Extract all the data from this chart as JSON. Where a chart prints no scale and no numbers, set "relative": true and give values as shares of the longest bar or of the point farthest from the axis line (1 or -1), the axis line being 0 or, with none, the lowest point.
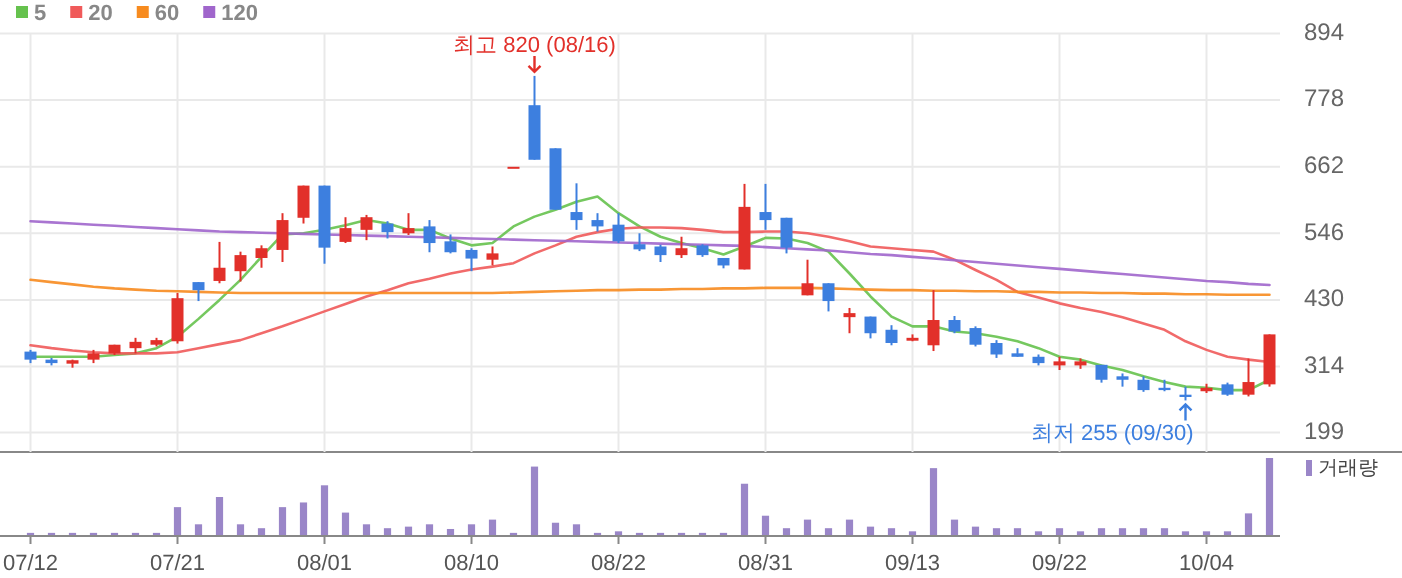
{
  "chart_data": [
    {
      "type": "candlestick",
      "categories": [
        null,
        null,
        null,
        null,
        null,
        null,
        null,
        null,
        null,
        null,
        null,
        null,
        null,
        null,
        null,
        null,
        null,
        null,
        null,
        null,
        null,
        null,
        null,
        null,
        null,
        null,
        null,
        null,
        null,
        null,
        null,
        null,
        null,
        null,
        null,
        null,
        null,
        null,
        null,
        null,
        null,
        null,
        null,
        null,
        null,
        null,
        null,
        null,
        null,
        null,
        null,
        null,
        null,
        null,
        null,
        null,
        null,
        null,
        null,
        null
      ],
      "ohlc": [
        [
          340,
          343,
          320,
          326
        ],
        [
          326,
          329,
          316,
          320
        ],
        [
          319,
          326,
          312,
          325
        ],
        [
          326,
          343,
          320,
          337
        ],
        [
          337,
          352,
          334,
          352
        ],
        [
          346,
          364,
          337,
          357
        ],
        [
          352,
          364,
          349,
          360
        ],
        [
          358,
          442,
          354,
          433
        ],
        [
          461,
          461,
          428,
          447
        ],
        [
          463,
          531,
          459,
          486
        ],
        [
          480,
          514,
          462,
          508
        ],
        [
          503,
          525,
          486,
          520
        ],
        [
          517,
          581,
          496,
          569
        ],
        [
          573,
          629,
          563,
          629
        ],
        [
          629,
          629,
          493,
          521
        ],
        [
          531,
          574,
          529,
          555
        ],
        [
          552,
          578,
          534,
          574
        ],
        [
          563,
          567,
          537,
          548
        ],
        [
          546,
          581,
          543,
          555
        ],
        [
          558,
          569,
          513,
          529
        ],
        [
          532,
          544,
          511,
          513
        ],
        [
          517,
          520,
          480,
          502
        ],
        [
          500,
          523,
          490,
          511
        ],
        [
          660,
          660,
          660,
          660
        ],
        [
          769,
          820,
          674,
          674
        ],
        [
          694,
          694,
          587,
          587
        ],
        [
          583,
          633,
          552,
          569
        ],
        [
          569,
          581,
          549,
          558
        ],
        [
          561,
          581,
          529,
          532
        ],
        [
          527,
          546,
          515,
          518
        ],
        [
          523,
          526,
          496,
          508
        ],
        [
          508,
          540,
          503,
          520
        ],
        [
          525,
          527,
          505,
          508
        ],
        [
          503,
          503,
          485,
          490
        ],
        [
          483,
          632,
          483,
          592
        ],
        [
          583,
          632,
          552,
          569
        ],
        [
          573,
          573,
          511,
          521
        ],
        [
          438,
          500,
          438,
          459
        ],
        [
          459,
          459,
          410,
          428
        ],
        [
          400,
          416,
          372,
          407
        ],
        [
          401,
          401,
          363,
          372
        ],
        [
          378,
          386,
          351,
          355
        ],
        [
          359,
          370,
          358,
          364
        ],
        [
          351,
          447,
          341,
          395
        ],
        [
          395,
          402,
          372,
          375
        ],
        [
          381,
          384,
          349,
          352
        ],
        [
          355,
          360,
          329,
          335
        ],
        [
          337,
          346,
          331,
          331
        ],
        [
          331,
          335,
          316,
          320
        ],
        [
          316,
          331,
          308,
          323
        ],
        [
          316,
          328,
          310,
          323
        ],
        [
          317,
          317,
          286,
          291
        ],
        [
          297,
          302,
          279,
          291
        ],
        [
          291,
          297,
          270,
          273
        ],
        [
          277,
          291,
          271,
          273
        ],
        [
          265,
          279,
          255,
          261
        ],
        [
          271,
          284,
          268,
          277
        ],
        [
          283,
          286,
          263,
          265
        ],
        [
          265,
          328,
          262,
          287
        ],
        [
          283,
          370,
          279,
          370
        ]
      ],
      "colors": [
        "#3d7fdf",
        "#3d7fdf",
        "#e2302a",
        "#e2302a",
        "#e2302a",
        "#e2302a",
        "#e2302a",
        "#e2302a",
        "#3d7fdf",
        "#e2302a",
        "#e2302a",
        "#e2302a",
        "#e2302a",
        "#e2302a",
        "#3d7fdf",
        "#e2302a",
        "#e2302a",
        "#3d7fdf",
        "#e2302a",
        "#3d7fdf",
        "#3d7fdf",
        "#3d7fdf",
        "#e2302a",
        "#e2302a",
        "#3d7fdf",
        "#3d7fdf",
        "#3d7fdf",
        "#3d7fdf",
        "#3d7fdf",
        "#3d7fdf",
        "#3d7fdf",
        "#e2302a",
        "#3d7fdf",
        "#3d7fdf",
        "#e2302a",
        "#3d7fdf",
        "#3d7fdf",
        "#e2302a",
        "#3d7fdf",
        "#e2302a",
        "#3d7fdf",
        "#3d7fdf",
        "#e2302a",
        "#e2302a",
        "#3d7fdf",
        "#3d7fdf",
        "#3d7fdf",
        "#3d7fdf",
        "#3d7fdf",
        "#e2302a",
        "#e2302a",
        "#3d7fdf",
        "#3d7fdf",
        "#3d7fdf",
        "#3d7fdf",
        "#3d7fdf",
        "#e2302a",
        "#3d7fdf",
        "#e2302a",
        "#e2302a"
      ],
      "series": [
        {
          "name": "5",
          "type": "line",
          "color": "#66c24e",
          "values": [
            331,
            331,
            331,
            331,
            334,
            337,
            346,
            366,
            397,
            430,
            465,
            505,
            544,
            546,
            552,
            560,
            569,
            563,
            552,
            552,
            537,
            525,
            529,
            558,
            575,
            587,
            601,
            610,
            581,
            558,
            540,
            529,
            520,
            509,
            523,
            538,
            537,
            529,
            514,
            476,
            436,
            401,
            384,
            384,
            375,
            372,
            366,
            358,
            346,
            331,
            326,
            316,
            308,
            297,
            287,
            279,
            277,
            273,
            273,
            291
          ]
        },
        {
          "name": "20",
          "type": "line",
          "color": "#f05a5a",
          "values": [
            351,
            346,
            342,
            339,
            337,
            337,
            337,
            339,
            346,
            353,
            360,
            372,
            384,
            397,
            410,
            423,
            436,
            447,
            459,
            467,
            476,
            483,
            488,
            494,
            511,
            525,
            540,
            548,
            554,
            556,
            556,
            555,
            552,
            548,
            548,
            549,
            549,
            546,
            540,
            532,
            523,
            520,
            517,
            514,
            500,
            482,
            465,
            444,
            434,
            424,
            416,
            409,
            400,
            389,
            378,
            358,
            343,
            331,
            326,
            322
          ]
        },
        {
          "name": "60",
          "type": "line",
          "color": "#f78b1f",
          "values": [
            465,
            461,
            457,
            453,
            450,
            448,
            446,
            445,
            444,
            443,
            442,
            442,
            442,
            442,
            442,
            442,
            442,
            442,
            442,
            442,
            442,
            442,
            442,
            443,
            444,
            445,
            446,
            447,
            447,
            448,
            448,
            449,
            449,
            450,
            450,
            451,
            451,
            451,
            450,
            449,
            448,
            447,
            447,
            446,
            446,
            445,
            445,
            444,
            444,
            443,
            443,
            442,
            442,
            441,
            441,
            440,
            440,
            439,
            439,
            439
          ]
        },
        {
          "name": "120",
          "type": "line",
          "color": "#a066cc",
          "values": [
            567,
            565,
            563,
            561,
            559,
            557,
            555,
            553,
            551,
            549,
            548,
            547,
            546,
            545,
            544,
            543,
            542,
            541,
            540,
            539,
            538,
            537,
            536,
            535,
            534,
            533,
            532,
            531,
            530,
            529,
            528,
            527,
            526,
            525,
            524,
            522,
            520,
            518,
            516,
            513,
            510,
            508,
            505,
            502,
            499,
            496,
            493,
            490,
            487,
            484,
            481,
            478,
            475,
            472,
            469,
            466,
            463,
            461,
            458,
            456
          ]
        }
      ],
      "ylim": [
        199,
        894
      ],
      "yticks": [
        199,
        314,
        430,
        546,
        662,
        778,
        894
      ],
      "grid": true,
      "legend": "top left",
      "tick_labels": "y",
      "annotations": [
        "최고 820 (08/16)",
        "최저 255 (09/30)"
      ]
    },
    {
      "type": "bar",
      "relative": true,
      "categories": [
        "07/12",
        null,
        null,
        null,
        null,
        null,
        null,
        "07/21",
        null,
        null,
        null,
        null,
        null,
        null,
        "08/01",
        null,
        null,
        null,
        null,
        null,
        null,
        "08/10",
        null,
        null,
        null,
        null,
        null,
        null,
        "08/22",
        null,
        null,
        null,
        null,
        null,
        null,
        "08/31",
        null,
        null,
        null,
        null,
        null,
        null,
        "09/13",
        null,
        null,
        null,
        null,
        null,
        null,
        "09/22",
        null,
        null,
        null,
        null,
        null,
        null,
        "10/04",
        null,
        null,
        null
      ],
      "series": [
        {
          "name": "거래량",
          "color": "#9a86c8",
          "values": [
            0.04,
            0.04,
            0.04,
            0.04,
            0.04,
            0.04,
            0.04,
            0.37,
            0.15,
            0.5,
            0.15,
            0.1,
            0.37,
            0.43,
            0.65,
            0.3,
            0.15,
            0.1,
            0.12,
            0.15,
            0.09,
            0.15,
            0.21,
            0.04,
            0.89,
            0.17,
            0.15,
            0.04,
            0.06,
            0.04,
            0.04,
            0.04,
            0.04,
            0.04,
            0.67,
            0.26,
            0.1,
            0.21,
            0.1,
            0.21,
            0.12,
            0.1,
            0.06,
            0.87,
            0.21,
            0.12,
            0.1,
            0.1,
            0.06,
            0.1,
            0.06,
            0.1,
            0.1,
            0.1,
            0.1,
            0.06,
            0.06,
            0.06,
            0.29,
            1
          ]
        }
      ],
      "legend": "top right",
      "tick_labels": "x"
    }
  ]
}
